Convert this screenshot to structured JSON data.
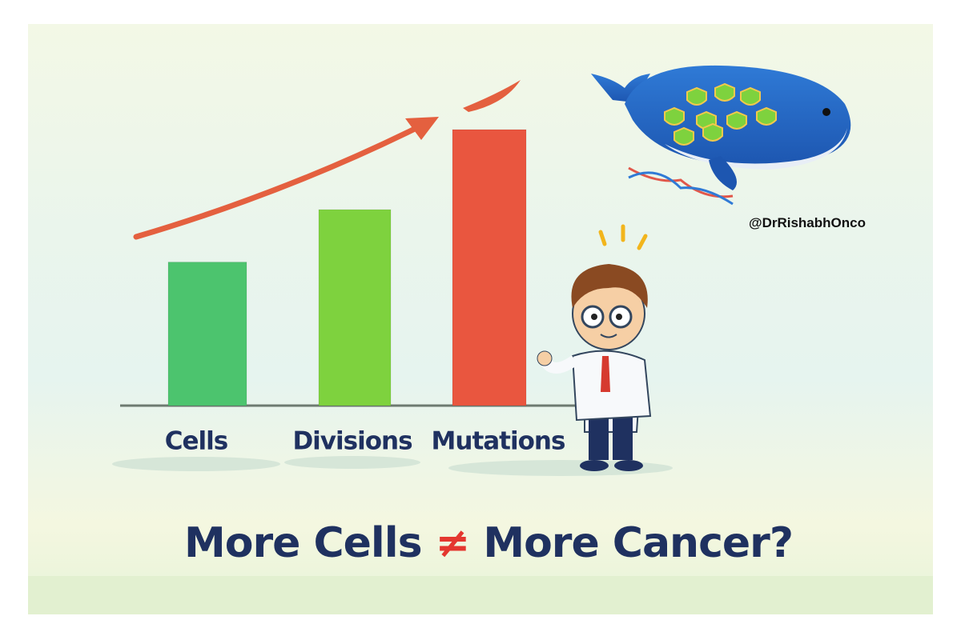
{
  "chart_data": {
    "type": "bar",
    "title": "More Cells ≠ More Cancer?",
    "annotation": "@DrRishabhOnco",
    "categories": [
      "Cells",
      "Divisions",
      "Mutations"
    ],
    "values": [
      52,
      71,
      100
    ],
    "colors": [
      "#4cc46e",
      "#7ed23e",
      "#e9563f"
    ],
    "ylim": [
      0,
      100
    ]
  }
}
